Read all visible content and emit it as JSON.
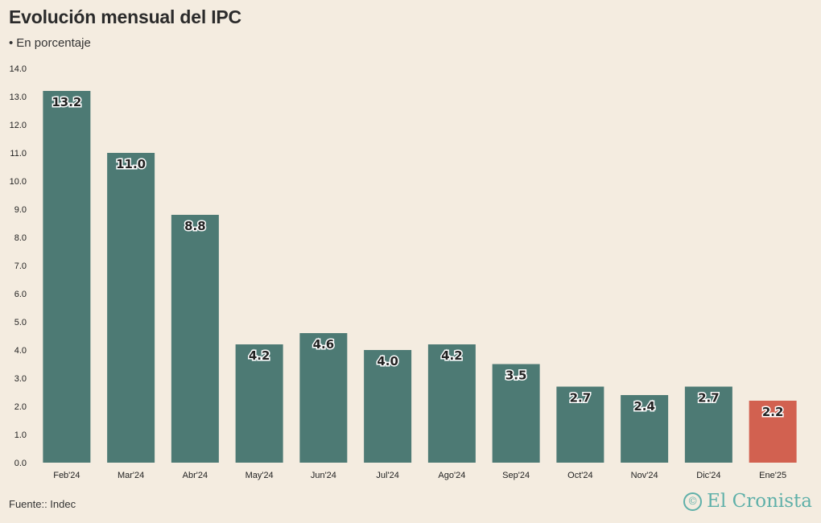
{
  "header": {
    "title": "Evolución mensual del IPC",
    "subtitle_bullet": "•",
    "subtitle": "En porcentaje"
  },
  "footer": {
    "source": "Fuente:: Indec",
    "logo_mark": "©",
    "logo_text": "El Cronista"
  },
  "colors": {
    "bar": "#4d7a74",
    "highlight": "#d26150",
    "logo": "#5fb0a9",
    "background": "#f4ece0"
  },
  "chart_data": {
    "type": "bar",
    "title": "Evolución mensual del IPC",
    "subtitle": "En porcentaje",
    "categories": [
      "Feb'24",
      "Mar'24",
      "Abr'24",
      "May'24",
      "Jun'24",
      "Jul'24",
      "Ago'24",
      "Sep'24",
      "Oct'24",
      "Nov'24",
      "Dic'24",
      "Ene'25"
    ],
    "values": [
      13.2,
      11.0,
      8.8,
      4.2,
      4.6,
      4.0,
      4.2,
      3.5,
      2.7,
      2.4,
      2.7,
      2.2
    ],
    "value_labels": [
      "13.2",
      "11.0",
      "8.8",
      "4.2",
      "4.6",
      "4.0",
      "4.2",
      "3.5",
      "2.7",
      "2.4",
      "2.7",
      "2.2"
    ],
    "highlight_index": 11,
    "ylim": [
      0,
      14
    ],
    "yticks": [
      "0.0",
      "1.0",
      "2.0",
      "3.0",
      "4.0",
      "5.0",
      "6.0",
      "7.0",
      "8.0",
      "9.0",
      "10.0",
      "11.0",
      "12.0",
      "13.0",
      "14.0"
    ],
    "grid": false,
    "legend": "none"
  }
}
